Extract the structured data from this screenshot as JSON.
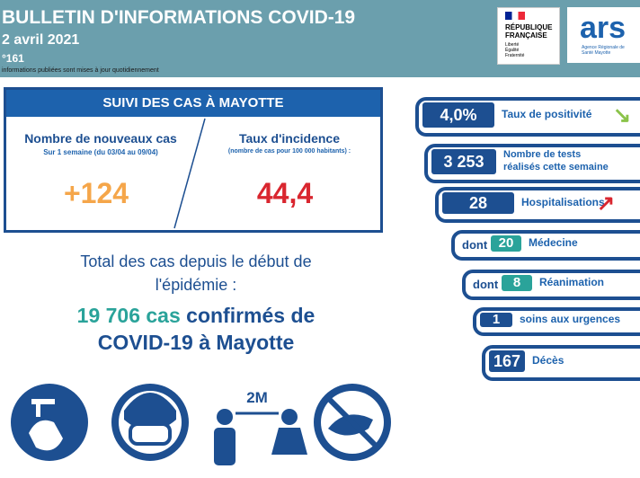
{
  "header": {
    "title": "BULLETIN D'INFORMATIONS COVID-19",
    "date": "2 avril 2021",
    "number": "°161",
    "note": "informations publiées sont mises à jour quotidiennement",
    "logo_rf": {
      "line1": "RÉPUBLIQUE",
      "line2": "FRANÇAISE",
      "motto": "Liberté Égalité Fraternité"
    },
    "logo_ars": {
      "text": "ars",
      "sub": "Agence Régionale de Santé Mayotte"
    }
  },
  "cases": {
    "title": "SUIVI DES CAS À MAYOTTE",
    "new_cases": {
      "label": "Nombre de nouveaux cas",
      "period": "Sur 1 semaine (du 03/04 au 09/04)",
      "value": "+124"
    },
    "incidence": {
      "label": "Taux d'incidence",
      "note": "(nombre de cas pour 100 000 habitants) :",
      "value": "44,4"
    }
  },
  "total": {
    "line1": "Total des cas depuis le début de",
    "line2": "l'épidémie :",
    "count": "19 706 cas",
    "line3": "confirmés de",
    "line4": "COVID-19 à Mayotte"
  },
  "stats": [
    {
      "value": "4,0%",
      "label": "Taux de positivité",
      "trend": "↘"
    },
    {
      "value": "3 253",
      "label": "Nombre de tests",
      "label2": "réalisés cette semaine"
    },
    {
      "value": "28",
      "label": "Hospitalisations",
      "trend": "↗"
    },
    {
      "prefix": "dont",
      "value": "20",
      "label": "Médecine"
    },
    {
      "prefix": "dont",
      "value": "8",
      "label": "Réanimation"
    },
    {
      "value": "1",
      "label": "soins aux urgences"
    },
    {
      "value": "167",
      "label": "Décès"
    }
  ],
  "icons": {
    "distance": "2M"
  }
}
